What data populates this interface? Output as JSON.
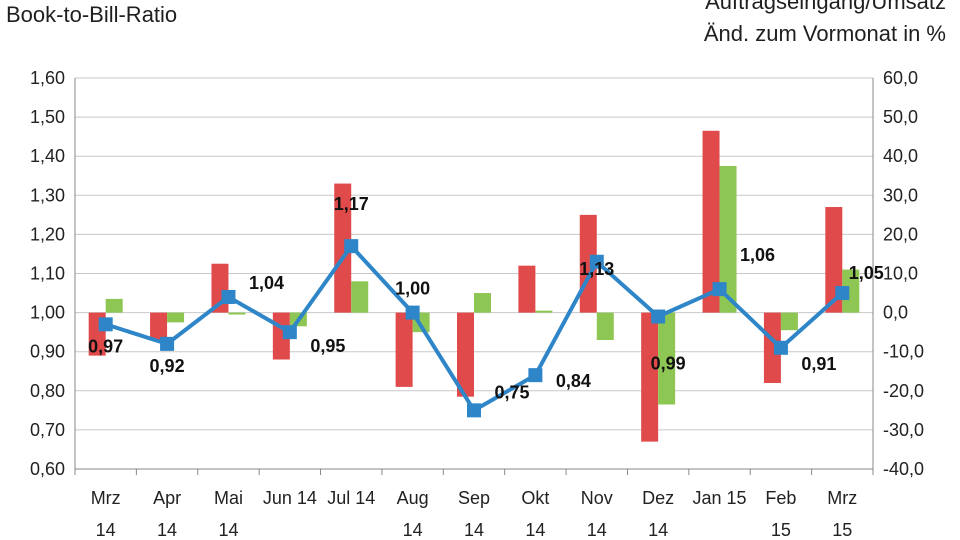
{
  "chart_data": {
    "type": "bar",
    "title_left": "Book-to-Bill-Ratio",
    "title_right": [
      "Auftragseingang/Umsatz",
      "Änd. zum  Vormonat in %"
    ],
    "categories": [
      [
        "Mrz",
        "14"
      ],
      [
        "Apr",
        "14"
      ],
      [
        "Mai",
        "14"
      ],
      [
        "Jun 14"
      ],
      [
        "Jul 14"
      ],
      [
        "Aug",
        "14"
      ],
      [
        "Sep",
        "14"
      ],
      [
        "Okt",
        "14"
      ],
      [
        "Nov",
        "14"
      ],
      [
        "Dez",
        "14"
      ],
      [
        "Jan 15"
      ],
      [
        "Feb",
        "15"
      ],
      [
        "Mrz",
        "15"
      ]
    ],
    "y_left": {
      "ylim": [
        0.6,
        1.6
      ],
      "ticks": [
        "0,60",
        "0,70",
        "0,80",
        "0,90",
        "1,00",
        "1,10",
        "1,20",
        "1,30",
        "1,40",
        "1,50",
        "1,60"
      ]
    },
    "y_right": {
      "ylim": [
        -40,
        60
      ],
      "ticks": [
        "-40,0",
        "-30,0",
        "-20,0",
        "-10,0",
        "0,0",
        "10,0",
        "20,0",
        "30,0",
        "40,0",
        "50,0",
        "60,0"
      ]
    },
    "series": [
      {
        "axis": "right",
        "type": "bar",
        "color": "#e04a4a",
        "values": [
          -11,
          -7,
          12.5,
          -12,
          33,
          -19,
          -21.5,
          12,
          25,
          -33,
          46.5,
          -18,
          27
        ]
      },
      {
        "axis": "right",
        "type": "bar",
        "color": "#8dc652",
        "values": [
          3.5,
          -2.5,
          -0.5,
          -3.5,
          8,
          -5,
          5,
          0.5,
          -7,
          -23.5,
          37.5,
          -4.5,
          11
        ]
      },
      {
        "axis": "left",
        "type": "line",
        "color": "#2e86c8",
        "values": [
          0.97,
          0.92,
          1.04,
          0.95,
          1.17,
          1.0,
          0.75,
          0.84,
          1.13,
          0.99,
          1.06,
          0.91,
          1.05
        ],
        "labels": [
          "0,97",
          "0,92",
          "1,04",
          "0,95",
          "1,17",
          "1,00",
          "0,75",
          "0,84",
          "1,13",
          "0,99",
          "1,06",
          "0,91",
          "1,05"
        ]
      }
    ],
    "grid": true
  }
}
